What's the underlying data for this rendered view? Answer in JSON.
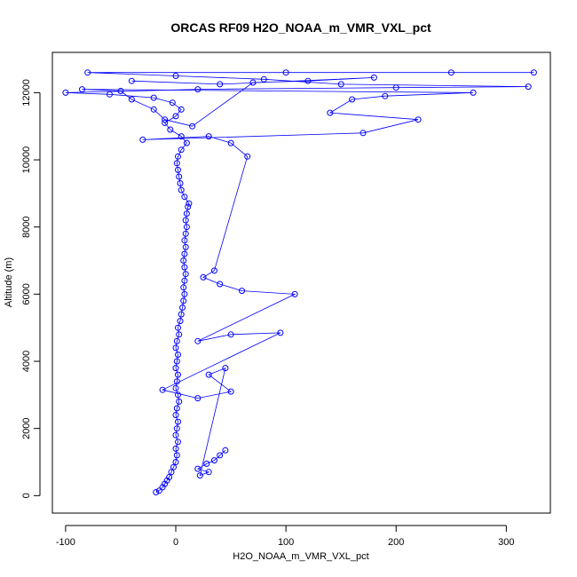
{
  "chart_data": {
    "type": "line",
    "title": "ORCAS RF09 H2O_NOAA_m_VMR_VXL_pct",
    "xlabel": "H2O_NOAA_m_VMR_VXL_pct",
    "ylabel": "Altitude (m)",
    "xlim": [
      -112,
      340
    ],
    "ylim": [
      -520,
      13200
    ],
    "xticks": [
      -100,
      0,
      100,
      200,
      300
    ],
    "yticks": [
      0,
      2000,
      4000,
      6000,
      8000,
      10000,
      12000
    ],
    "xtick_labels": [
      "-100",
      "0",
      "100",
      "200",
      "300"
    ],
    "ytick_labels": [
      "0",
      "2000",
      "4000",
      "6000",
      "8000",
      "10000",
      "12000"
    ],
    "grid": false,
    "legend": "none",
    "marker": "open-circle",
    "series": [
      {
        "color": "#0000ff",
        "points": [
          [
            -18,
            100
          ],
          [
            -15,
            150
          ],
          [
            -12,
            250
          ],
          [
            -10,
            350
          ],
          [
            -8,
            450
          ],
          [
            -6,
            550
          ],
          [
            -4,
            700
          ],
          [
            -2,
            850
          ],
          [
            0,
            1000
          ],
          [
            1,
            1200
          ],
          [
            0,
            1400
          ],
          [
            2,
            1600
          ],
          [
            0,
            1800
          ],
          [
            1,
            2000
          ],
          [
            2,
            2200
          ],
          [
            0,
            2400
          ],
          [
            1,
            2600
          ],
          [
            3,
            2800
          ],
          [
            2,
            3000
          ],
          [
            0,
            3200
          ],
          [
            1,
            3400
          ],
          [
            2,
            3600
          ],
          [
            0,
            3800
          ],
          [
            1,
            4000
          ],
          [
            2,
            4200
          ],
          [
            0,
            4400
          ],
          [
            1,
            4600
          ],
          [
            3,
            4800
          ],
          [
            2,
            5000
          ],
          [
            4,
            5200
          ],
          [
            5,
            5400
          ],
          [
            6,
            5600
          ],
          [
            7,
            5800
          ],
          [
            8,
            6000
          ],
          [
            7,
            6200
          ],
          [
            8,
            6400
          ],
          [
            9,
            6600
          ],
          [
            8,
            6800
          ],
          [
            7,
            7000
          ],
          [
            8,
            7200
          ],
          [
            9,
            7400
          ],
          [
            8,
            7600
          ],
          [
            9,
            7800
          ],
          [
            10,
            8000
          ],
          [
            9,
            8200
          ],
          [
            10,
            8400
          ],
          [
            11,
            8600
          ],
          [
            12,
            8700
          ],
          [
            8,
            8900
          ],
          [
            5,
            9100
          ],
          [
            4,
            9300
          ],
          [
            3,
            9500
          ],
          [
            2,
            9700
          ],
          [
            1,
            9900
          ],
          [
            2,
            10100
          ],
          [
            5,
            10300
          ],
          [
            10,
            10500
          ],
          [
            5,
            10700
          ],
          [
            -5,
            10900
          ],
          [
            -10,
            11100
          ],
          [
            0,
            11300
          ],
          [
            5,
            11500
          ],
          [
            -3,
            11700
          ],
          [
            -20,
            11850
          ],
          [
            -60,
            11950
          ],
          [
            -100,
            12000
          ],
          [
            20,
            12100
          ],
          [
            200,
            12150
          ],
          [
            320,
            12180
          ],
          [
            150,
            12250
          ],
          [
            80,
            12400
          ],
          [
            0,
            12500
          ],
          [
            -80,
            12600
          ],
          [
            100,
            12600
          ],
          [
            250,
            12600
          ],
          [
            325,
            12600
          ]
        ]
      },
      {
        "color": "#0000ff",
        "points": [
          [
            45,
            1350
          ],
          [
            40,
            1200
          ],
          [
            35,
            1050
          ],
          [
            28,
            950
          ],
          [
            20,
            800
          ],
          [
            30,
            700
          ],
          [
            22,
            600
          ],
          [
            45,
            3800
          ],
          [
            30,
            3600
          ],
          [
            50,
            3100
          ],
          [
            20,
            2900
          ],
          [
            -12,
            3150
          ],
          [
            95,
            4850
          ],
          [
            50,
            4800
          ],
          [
            20,
            4600
          ],
          [
            108,
            6000
          ],
          [
            60,
            6100
          ],
          [
            40,
            6300
          ],
          [
            25,
            6500
          ],
          [
            35,
            6700
          ],
          [
            65,
            10100
          ],
          [
            50,
            10500
          ],
          [
            30,
            10700
          ],
          [
            -30,
            10600
          ],
          [
            170,
            10800
          ],
          [
            220,
            11200
          ],
          [
            140,
            11400
          ],
          [
            160,
            11800
          ],
          [
            190,
            11900
          ],
          [
            270,
            12000
          ],
          [
            -85,
            12100
          ],
          [
            -50,
            12050
          ],
          [
            -40,
            11800
          ],
          [
            -20,
            11500
          ],
          [
            -10,
            11200
          ],
          [
            15,
            11000
          ],
          [
            70,
            12300
          ],
          [
            120,
            12350
          ],
          [
            180,
            12450
          ],
          [
            40,
            12250
          ],
          [
            -40,
            12350
          ]
        ]
      }
    ]
  }
}
